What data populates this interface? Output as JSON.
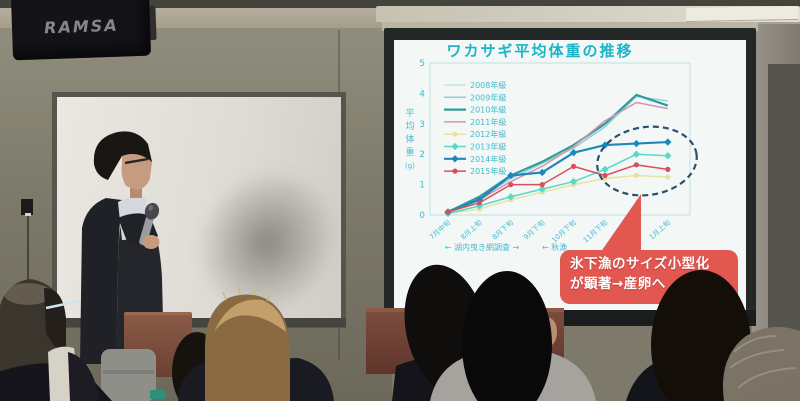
{
  "scene": {
    "speaker_brand": "RAMSA"
  },
  "slide": {
    "axis_note_left": "← 湖内曳き網調査 →",
    "axis_note_right": "← 秋漁",
    "callout": {
      "line1": "氷下漁のサイズ小型化",
      "line2": "が顕著→産卵へ",
      "color": "#e2574f",
      "text_color": "#ffffff"
    }
  },
  "chart_data": {
    "type": "line",
    "title": "ワカサギ平均体重の推移",
    "title_color": "#1db4c8",
    "axis_color": "#49b9cd",
    "xlabel": "",
    "ylabel": "平均体重(g)",
    "ylim": [
      0,
      5
    ],
    "yticks": [
      0,
      1,
      2,
      3,
      4,
      5
    ],
    "grid": false,
    "legend_position": "upper-left",
    "categories": [
      "7月中旬",
      "8月上旬",
      "8月下旬",
      "9月下旬",
      "10月下旬",
      "11月下旬",
      "12月中旬",
      "1月上旬"
    ],
    "series": [
      {
        "name": "2008年級",
        "color": "#bfe6ea",
        "marker": "none",
        "values": null
      },
      {
        "name": "2009年級",
        "color": "#8fd2d2",
        "marker": "none",
        "values": [
          0.1,
          0.55,
          1.2,
          1.7,
          2.2,
          2.9,
          3.9,
          3.75
        ]
      },
      {
        "name": "2010年級",
        "color": "#2f9c9c",
        "marker": "none",
        "values": [
          0.1,
          0.6,
          1.3,
          1.75,
          2.3,
          3.0,
          3.95,
          3.6
        ]
      },
      {
        "name": "2011年級",
        "color": "#d892b2",
        "marker": "none",
        "values": [
          0.1,
          0.5,
          1.1,
          1.6,
          2.25,
          3.1,
          3.7,
          3.5
        ]
      },
      {
        "name": "2012年級",
        "color": "#e8e2a2",
        "marker": "circle",
        "values": [
          0.05,
          0.2,
          0.5,
          0.75,
          1.0,
          1.2,
          1.3,
          1.25
        ]
      },
      {
        "name": "2013年級",
        "color": "#58d8c8",
        "marker": "diamond",
        "values": [
          0.05,
          0.3,
          0.6,
          0.85,
          1.1,
          1.5,
          2.0,
          1.95
        ]
      },
      {
        "name": "2014年級",
        "color": "#1f88ba",
        "marker": "diamond",
        "values": [
          0.1,
          0.5,
          1.3,
          1.4,
          2.05,
          2.3,
          2.35,
          2.4
        ]
      },
      {
        "name": "2015年級",
        "color": "#d84f5f",
        "marker": "circle",
        "values": [
          0.1,
          0.4,
          1.0,
          1.0,
          1.6,
          1.3,
          1.65,
          1.5
        ]
      }
    ],
    "annotations": {
      "highlight": {
        "type": "dashed-ellipse",
        "series": [
          "2012年級",
          "2013年級",
          "2014年級",
          "2015年級"
        ],
        "at_categories": [
          "12月中旬",
          "1月上旬"
        ]
      }
    }
  }
}
